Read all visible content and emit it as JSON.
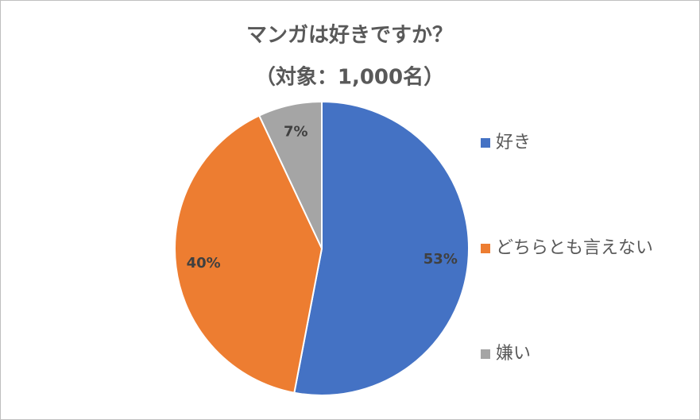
{
  "chart_data": {
    "type": "pie",
    "title": "マンガは好きですか？",
    "subtitle": "（対象：1,000名）",
    "categories": [
      "好き",
      "どちらとも言えない",
      "嫌い"
    ],
    "values": [
      53,
      40,
      7
    ],
    "value_labels": [
      "53%",
      "40%",
      "7%"
    ],
    "colors": [
      "#4472c4",
      "#ed7d31",
      "#a5a5a5"
    ],
    "legend": "right"
  }
}
